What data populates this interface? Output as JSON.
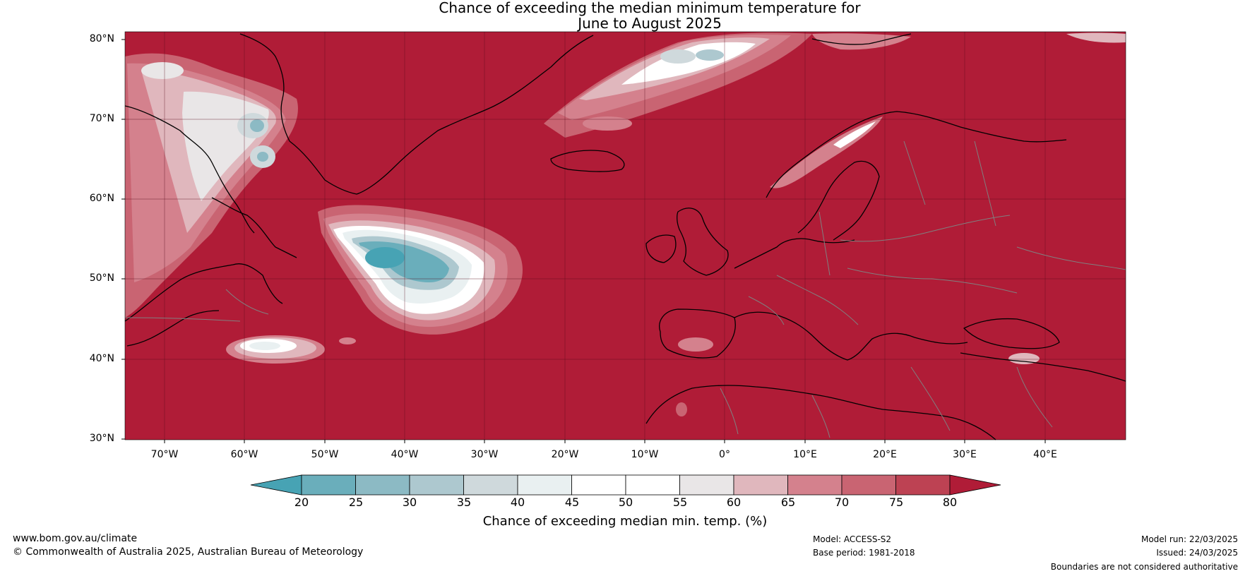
{
  "title": {
    "line1": "Chance of exceeding the median minimum temperature for",
    "line2": "June to August 2025"
  },
  "map": {
    "base_color": "#b01c37",
    "lat_labels": [
      "80°N",
      "70°N",
      "60°N",
      "50°N",
      "40°N",
      "30°N"
    ],
    "lon_labels": [
      "70°W",
      "60°W",
      "50°W",
      "40°W",
      "30°W",
      "20°W",
      "10°W",
      "0°",
      "10°E",
      "20°E",
      "30°E",
      "40°E"
    ]
  },
  "colorbar": {
    "label": "Chance of exceeding median min. temp. (%)",
    "ticks": [
      "20",
      "25",
      "30",
      "35",
      "40",
      "45",
      "50",
      "55",
      "60",
      "65",
      "70",
      "75",
      "80"
    ],
    "colors": [
      "#47a3b4",
      "#6aaebb",
      "#8cbac4",
      "#adc8cf",
      "#cfd9dc",
      "#e9f0f1",
      "#ffffff",
      "#ffffff",
      "#e9e6e7",
      "#e0b7bd",
      "#d4818d",
      "#c96472",
      "#bd4253",
      "#b01c37"
    ]
  },
  "footer": {
    "url": "www.bom.gov.au/climate",
    "copyright": "© Commonwealth of Australia 2025, Australian Bureau of Meteorology",
    "model": "Model: ACCESS-S2",
    "base_period": "Base period: 1981-2018",
    "model_run": "Model run: 22/03/2025",
    "issued": "Issued: 24/03/2025",
    "disclaimer": "Boundaries are not considered authoritative"
  }
}
